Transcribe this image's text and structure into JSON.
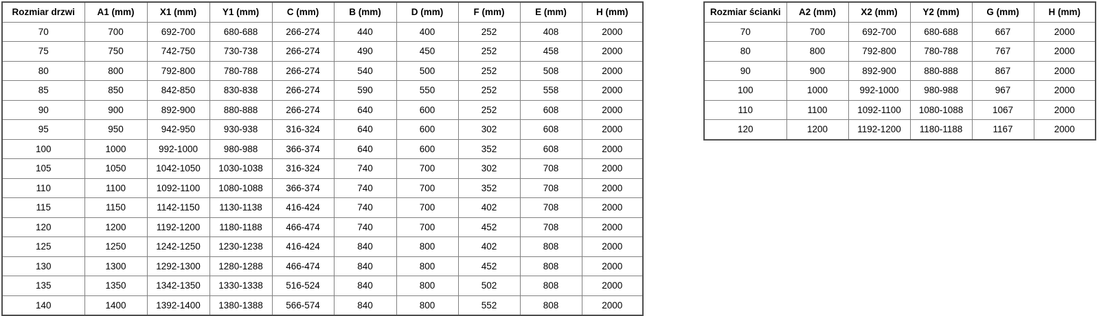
{
  "page": {
    "background_color": "#ffffff",
    "text_color": "#000000",
    "grid_line_color": "#808080",
    "outer_border_color": "#4d4d4d"
  },
  "left_table": {
    "headers": [
      "Rozmiar drzwi",
      "A1 (mm)",
      "X1 (mm)",
      "Y1 (mm)",
      "C (mm)",
      "B (mm)",
      "D (mm)",
      "F (mm)",
      "E (mm)",
      "H (mm)"
    ],
    "rows": [
      [
        "70",
        "700",
        "692-700",
        "680-688",
        "266-274",
        "440",
        "400",
        "252",
        "408",
        "2000"
      ],
      [
        "75",
        "750",
        "742-750",
        "730-738",
        "266-274",
        "490",
        "450",
        "252",
        "458",
        "2000"
      ],
      [
        "80",
        "800",
        "792-800",
        "780-788",
        "266-274",
        "540",
        "500",
        "252",
        "508",
        "2000"
      ],
      [
        "85",
        "850",
        "842-850",
        "830-838",
        "266-274",
        "590",
        "550",
        "252",
        "558",
        "2000"
      ],
      [
        "90",
        "900",
        "892-900",
        "880-888",
        "266-274",
        "640",
        "600",
        "252",
        "608",
        "2000"
      ],
      [
        "95",
        "950",
        "942-950",
        "930-938",
        "316-324",
        "640",
        "600",
        "302",
        "608",
        "2000"
      ],
      [
        "100",
        "1000",
        "992-1000",
        "980-988",
        "366-374",
        "640",
        "600",
        "352",
        "608",
        "2000"
      ],
      [
        "105",
        "1050",
        "1042-1050",
        "1030-1038",
        "316-324",
        "740",
        "700",
        "302",
        "708",
        "2000"
      ],
      [
        "110",
        "1100",
        "1092-1100",
        "1080-1088",
        "366-374",
        "740",
        "700",
        "352",
        "708",
        "2000"
      ],
      [
        "115",
        "1150",
        "1142-1150",
        "1130-1138",
        "416-424",
        "740",
        "700",
        "402",
        "708",
        "2000"
      ],
      [
        "120",
        "1200",
        "1192-1200",
        "1180-1188",
        "466-474",
        "740",
        "700",
        "452",
        "708",
        "2000"
      ],
      [
        "125",
        "1250",
        "1242-1250",
        "1230-1238",
        "416-424",
        "840",
        "800",
        "402",
        "808",
        "2000"
      ],
      [
        "130",
        "1300",
        "1292-1300",
        "1280-1288",
        "466-474",
        "840",
        "800",
        "452",
        "808",
        "2000"
      ],
      [
        "135",
        "1350",
        "1342-1350",
        "1330-1338",
        "516-524",
        "840",
        "800",
        "502",
        "808",
        "2000"
      ],
      [
        "140",
        "1400",
        "1392-1400",
        "1380-1388",
        "566-574",
        "840",
        "800",
        "552",
        "808",
        "2000"
      ]
    ]
  },
  "right_table": {
    "headers": [
      "Rozmiar ścianki",
      "A2 (mm)",
      "X2 (mm)",
      "Y2 (mm)",
      "G (mm)",
      "H (mm)"
    ],
    "rows": [
      [
        "70",
        "700",
        "692-700",
        "680-688",
        "667",
        "2000"
      ],
      [
        "80",
        "800",
        "792-800",
        "780-788",
        "767",
        "2000"
      ],
      [
        "90",
        "900",
        "892-900",
        "880-888",
        "867",
        "2000"
      ],
      [
        "100",
        "1000",
        "992-1000",
        "980-988",
        "967",
        "2000"
      ],
      [
        "110",
        "1100",
        "1092-1100",
        "1080-1088",
        "1067",
        "2000"
      ],
      [
        "120",
        "1200",
        "1192-1200",
        "1180-1188",
        "1167",
        "2000"
      ]
    ]
  }
}
